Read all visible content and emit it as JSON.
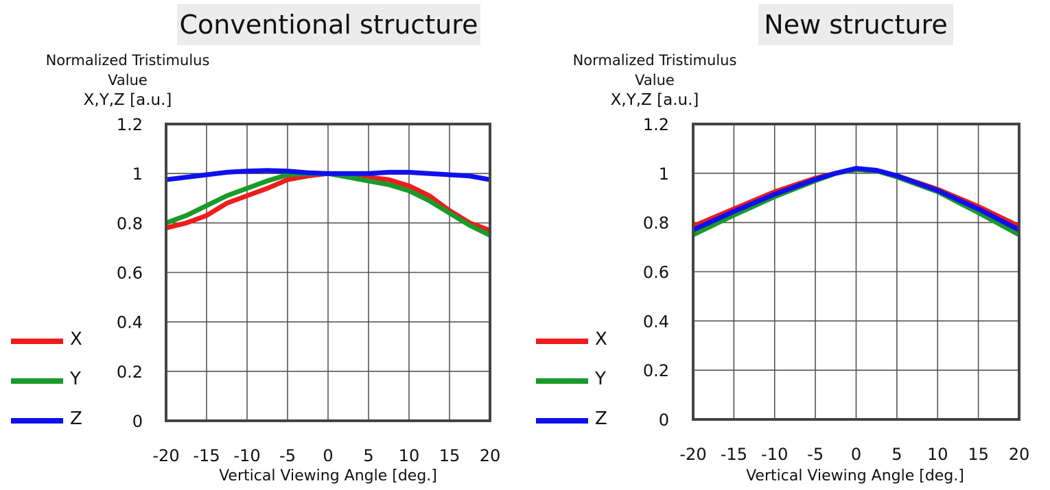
{
  "chart_data": [
    {
      "type": "line",
      "title": "Conventional structure",
      "ylabel": [
        "Normalized Tristimulus",
        "Value",
        "X,Y,Z [a.u.]"
      ],
      "xlabel": "Vertical Viewing Angle [deg.]",
      "xlim": [
        -20,
        20
      ],
      "ylim": [
        0,
        1.2
      ],
      "xticks": [
        "-20",
        "-15",
        "-10",
        "-5",
        "0",
        "5",
        "10",
        "15",
        "20"
      ],
      "yticks": [
        "0",
        "0.2",
        "0.4",
        "0.6",
        "0.8",
        "1",
        "1.2"
      ],
      "grid": true,
      "legend_position": "left",
      "x": [
        -20,
        -17.5,
        -15,
        -12.5,
        -10,
        -7.5,
        -5,
        -2.5,
        0,
        2.5,
        5,
        7.5,
        10,
        12.5,
        15,
        17.5,
        20
      ],
      "series": [
        {
          "name": "X",
          "color": "#ee1c1c",
          "values": [
            0.78,
            0.8,
            0.83,
            0.88,
            0.91,
            0.94,
            0.975,
            0.99,
            1.0,
            0.99,
            0.985,
            0.975,
            0.95,
            0.91,
            0.85,
            0.8,
            0.77
          ]
        },
        {
          "name": "Y",
          "color": "#1a9a2a",
          "values": [
            0.8,
            0.83,
            0.87,
            0.91,
            0.94,
            0.97,
            0.995,
            1.0,
            1.0,
            0.985,
            0.97,
            0.955,
            0.93,
            0.89,
            0.84,
            0.79,
            0.75
          ]
        },
        {
          "name": "Z",
          "color": "#1010ee",
          "values": [
            0.975,
            0.985,
            0.995,
            1.005,
            1.01,
            1.012,
            1.01,
            1.003,
            1.0,
            1.0,
            1.0,
            1.005,
            1.005,
            1.0,
            0.995,
            0.99,
            0.975
          ]
        }
      ]
    },
    {
      "type": "line",
      "title": "New structure",
      "ylabel": [
        "Normalized Tristimulus",
        "Value",
        "X,Y,Z [a.u.]"
      ],
      "xlabel": "Vertical Viewing Angle [deg.]",
      "xlim": [
        -20,
        20
      ],
      "ylim": [
        0,
        1.2
      ],
      "xticks": [
        "-20",
        "-15",
        "-10",
        "-5",
        "0",
        "5",
        "10",
        "15",
        "20"
      ],
      "yticks": [
        "0",
        "0.2",
        "0.4",
        "0.6",
        "0.8",
        "1",
        "1.2"
      ],
      "grid": true,
      "legend_position": "left",
      "x": [
        -20,
        -15,
        -10,
        -5,
        -2.5,
        0,
        2.5,
        5,
        10,
        15,
        20
      ],
      "series": [
        {
          "name": "X",
          "color": "#ee1c1c",
          "values": [
            0.785,
            0.855,
            0.925,
            0.98,
            1.0,
            1.015,
            1.01,
            0.99,
            0.935,
            0.865,
            0.785
          ]
        },
        {
          "name": "Y",
          "color": "#1a9a2a",
          "values": [
            0.75,
            0.83,
            0.905,
            0.97,
            1.0,
            1.015,
            1.01,
            0.985,
            0.925,
            0.84,
            0.75
          ]
        },
        {
          "name": "Z",
          "color": "#1010ee",
          "values": [
            0.77,
            0.845,
            0.915,
            0.975,
            1.0,
            1.02,
            1.012,
            0.99,
            0.93,
            0.855,
            0.77
          ]
        }
      ]
    }
  ]
}
